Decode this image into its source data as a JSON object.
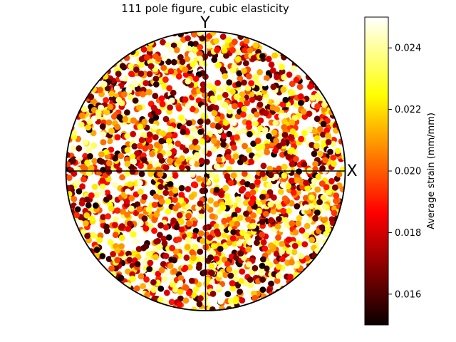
{
  "chart_data": {
    "type": "scatter",
    "title": "111 pole figure, cubic elasticity",
    "x_axis_label": "X",
    "y_axis_label": "Y",
    "projection": "pole figure (unit circle, x,y in [-1,1])",
    "colormap": "hot",
    "colorbar": {
      "label": "Average strain (mm/mm)",
      "min": 0.015,
      "max": 0.025,
      "ticks": [
        0.016,
        0.018,
        0.02,
        0.022,
        0.024
      ],
      "tick_labels": [
        "0.016",
        "0.018",
        "0.020",
        "0.022",
        "0.024"
      ],
      "placement": "right"
    },
    "grid": false,
    "legend": "none",
    "approx_point_count": 2400,
    "strain_range_observed": [
      0.015,
      0.025
    ],
    "note_values": "individual points are too dense to read; points are uniformly scattered over the pole figure disk with strains spanning the full colorbar range"
  }
}
